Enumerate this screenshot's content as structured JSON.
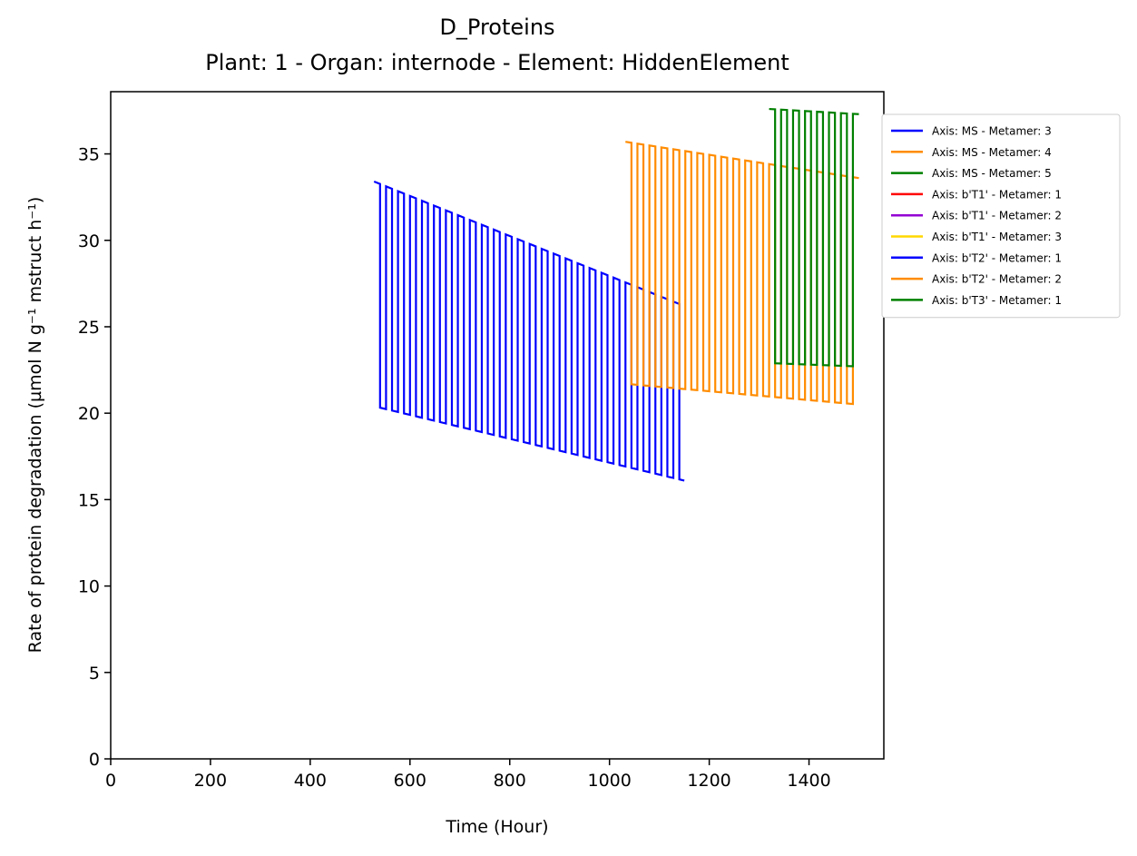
{
  "chart_data": {
    "type": "line",
    "title": "D_Proteins",
    "subtitle": "Plant: 1 - Organ: internode - Element: HiddenElement",
    "xlabel": "Time (Hour)",
    "ylabel": "Rate of protein degradation (µmol N g⁻¹ mstruct h⁻¹)",
    "xlim": [
      0,
      1550
    ],
    "ylim": [
      0,
      38.6
    ],
    "xticks": [
      0,
      200,
      400,
      600,
      800,
      1000,
      1200,
      1400
    ],
    "yticks": [
      0,
      5,
      10,
      15,
      20,
      25,
      30,
      35
    ],
    "grid": false,
    "legend_position": "outside upper right",
    "series": [
      {
        "name": "Axis: MS - Metamer: 3",
        "color": "#0000ff",
        "start": 528,
        "end": 1150,
        "high_start": 33.4,
        "high_end": 26.2,
        "low_start": 20.4,
        "low_end": 16.1,
        "period": 24
      },
      {
        "name": "Axis: MS - Metamer: 4",
        "color": "#ff8c00",
        "start": 1032,
        "end": 1500,
        "high_start": 35.7,
        "high_end": 33.6,
        "low_start": 21.7,
        "low_end": 20.5,
        "period": 24
      },
      {
        "name": "Axis: MS - Metamer: 5",
        "color": "#008000",
        "start": 1320,
        "end": 1500,
        "high_start": 37.6,
        "high_end": 37.3,
        "low_start": 22.9,
        "low_end": 22.7,
        "period": 24
      },
      {
        "name": "Axis: b'T1' - Metamer: 1",
        "color": "#ff0000"
      },
      {
        "name": "Axis: b'T1' - Metamer: 2",
        "color": "#9400d3"
      },
      {
        "name": "Axis: b'T1' - Metamer: 3",
        "color": "#ffd700"
      },
      {
        "name": "Axis: b'T2' - Metamer: 1",
        "color": "#0000ff"
      },
      {
        "name": "Axis: b'T2' - Metamer: 2",
        "color": "#ff8c00"
      },
      {
        "name": "Axis: b'T3' - Metamer: 1",
        "color": "#008000"
      }
    ]
  }
}
